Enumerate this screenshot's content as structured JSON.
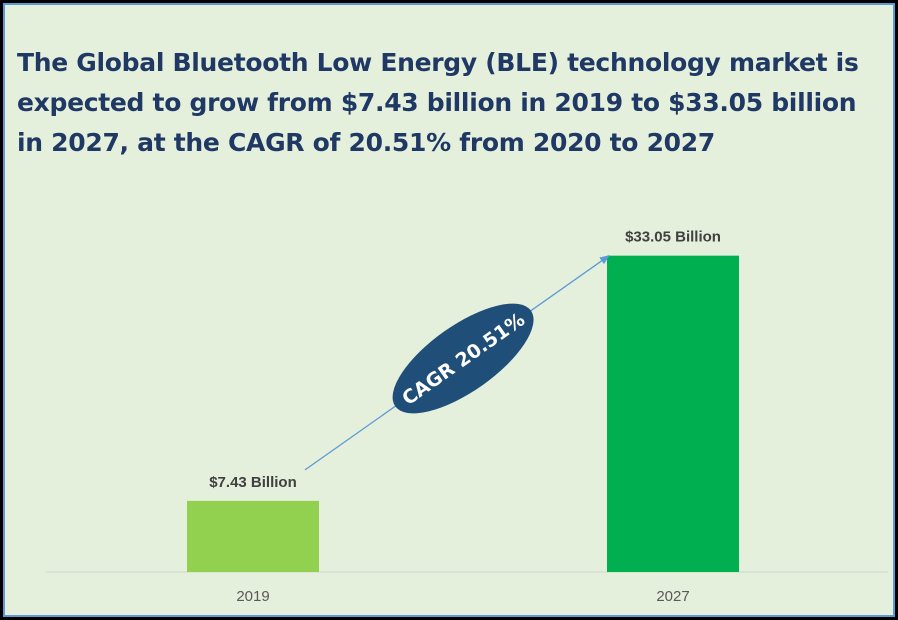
{
  "chart_data": {
    "type": "bar",
    "title": "The Global Bluetooth Low Energy (BLE) technology market is expected to grow from $7.43 billion in 2019 to $33.05 billion in 2027, at the CAGR of 20.51% from 2020 to 2027",
    "categories": [
      "2019",
      "2027"
    ],
    "values": [
      7.43,
      33.05
    ],
    "data_labels": [
      "$7.43 Billion",
      "$33.05 Billion"
    ],
    "bar_colors": [
      "#92d050",
      "#00b050"
    ],
    "annotation": "CAGR 20.51%",
    "ylim": [
      0,
      42
    ],
    "grid": false,
    "legend": "none",
    "xlabel": "",
    "ylabel": ""
  },
  "colors": {
    "background": "#e4efdc",
    "title": "#1f3864",
    "badge": "#1f4e79",
    "arrow": "#5b9bd5",
    "border": "#5b9bd5"
  }
}
